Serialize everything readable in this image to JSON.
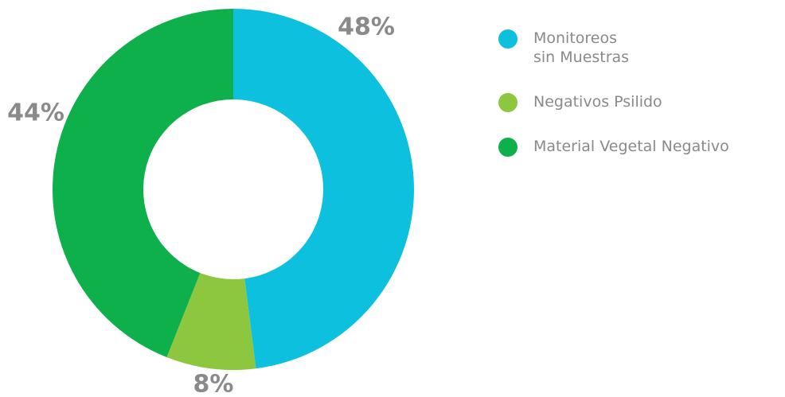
{
  "chart_data": {
    "type": "donut",
    "categories": [
      "Monitoreos sin Muestras",
      "Negativos Psilido",
      "Material Vegetal Negativo"
    ],
    "values": [
      48,
      8,
      44
    ],
    "value_labels": [
      "48%",
      "8%",
      "44%"
    ],
    "colors": [
      "#0dc0de",
      "#8dc63f",
      "#0db04b"
    ],
    "legend": "right"
  }
}
